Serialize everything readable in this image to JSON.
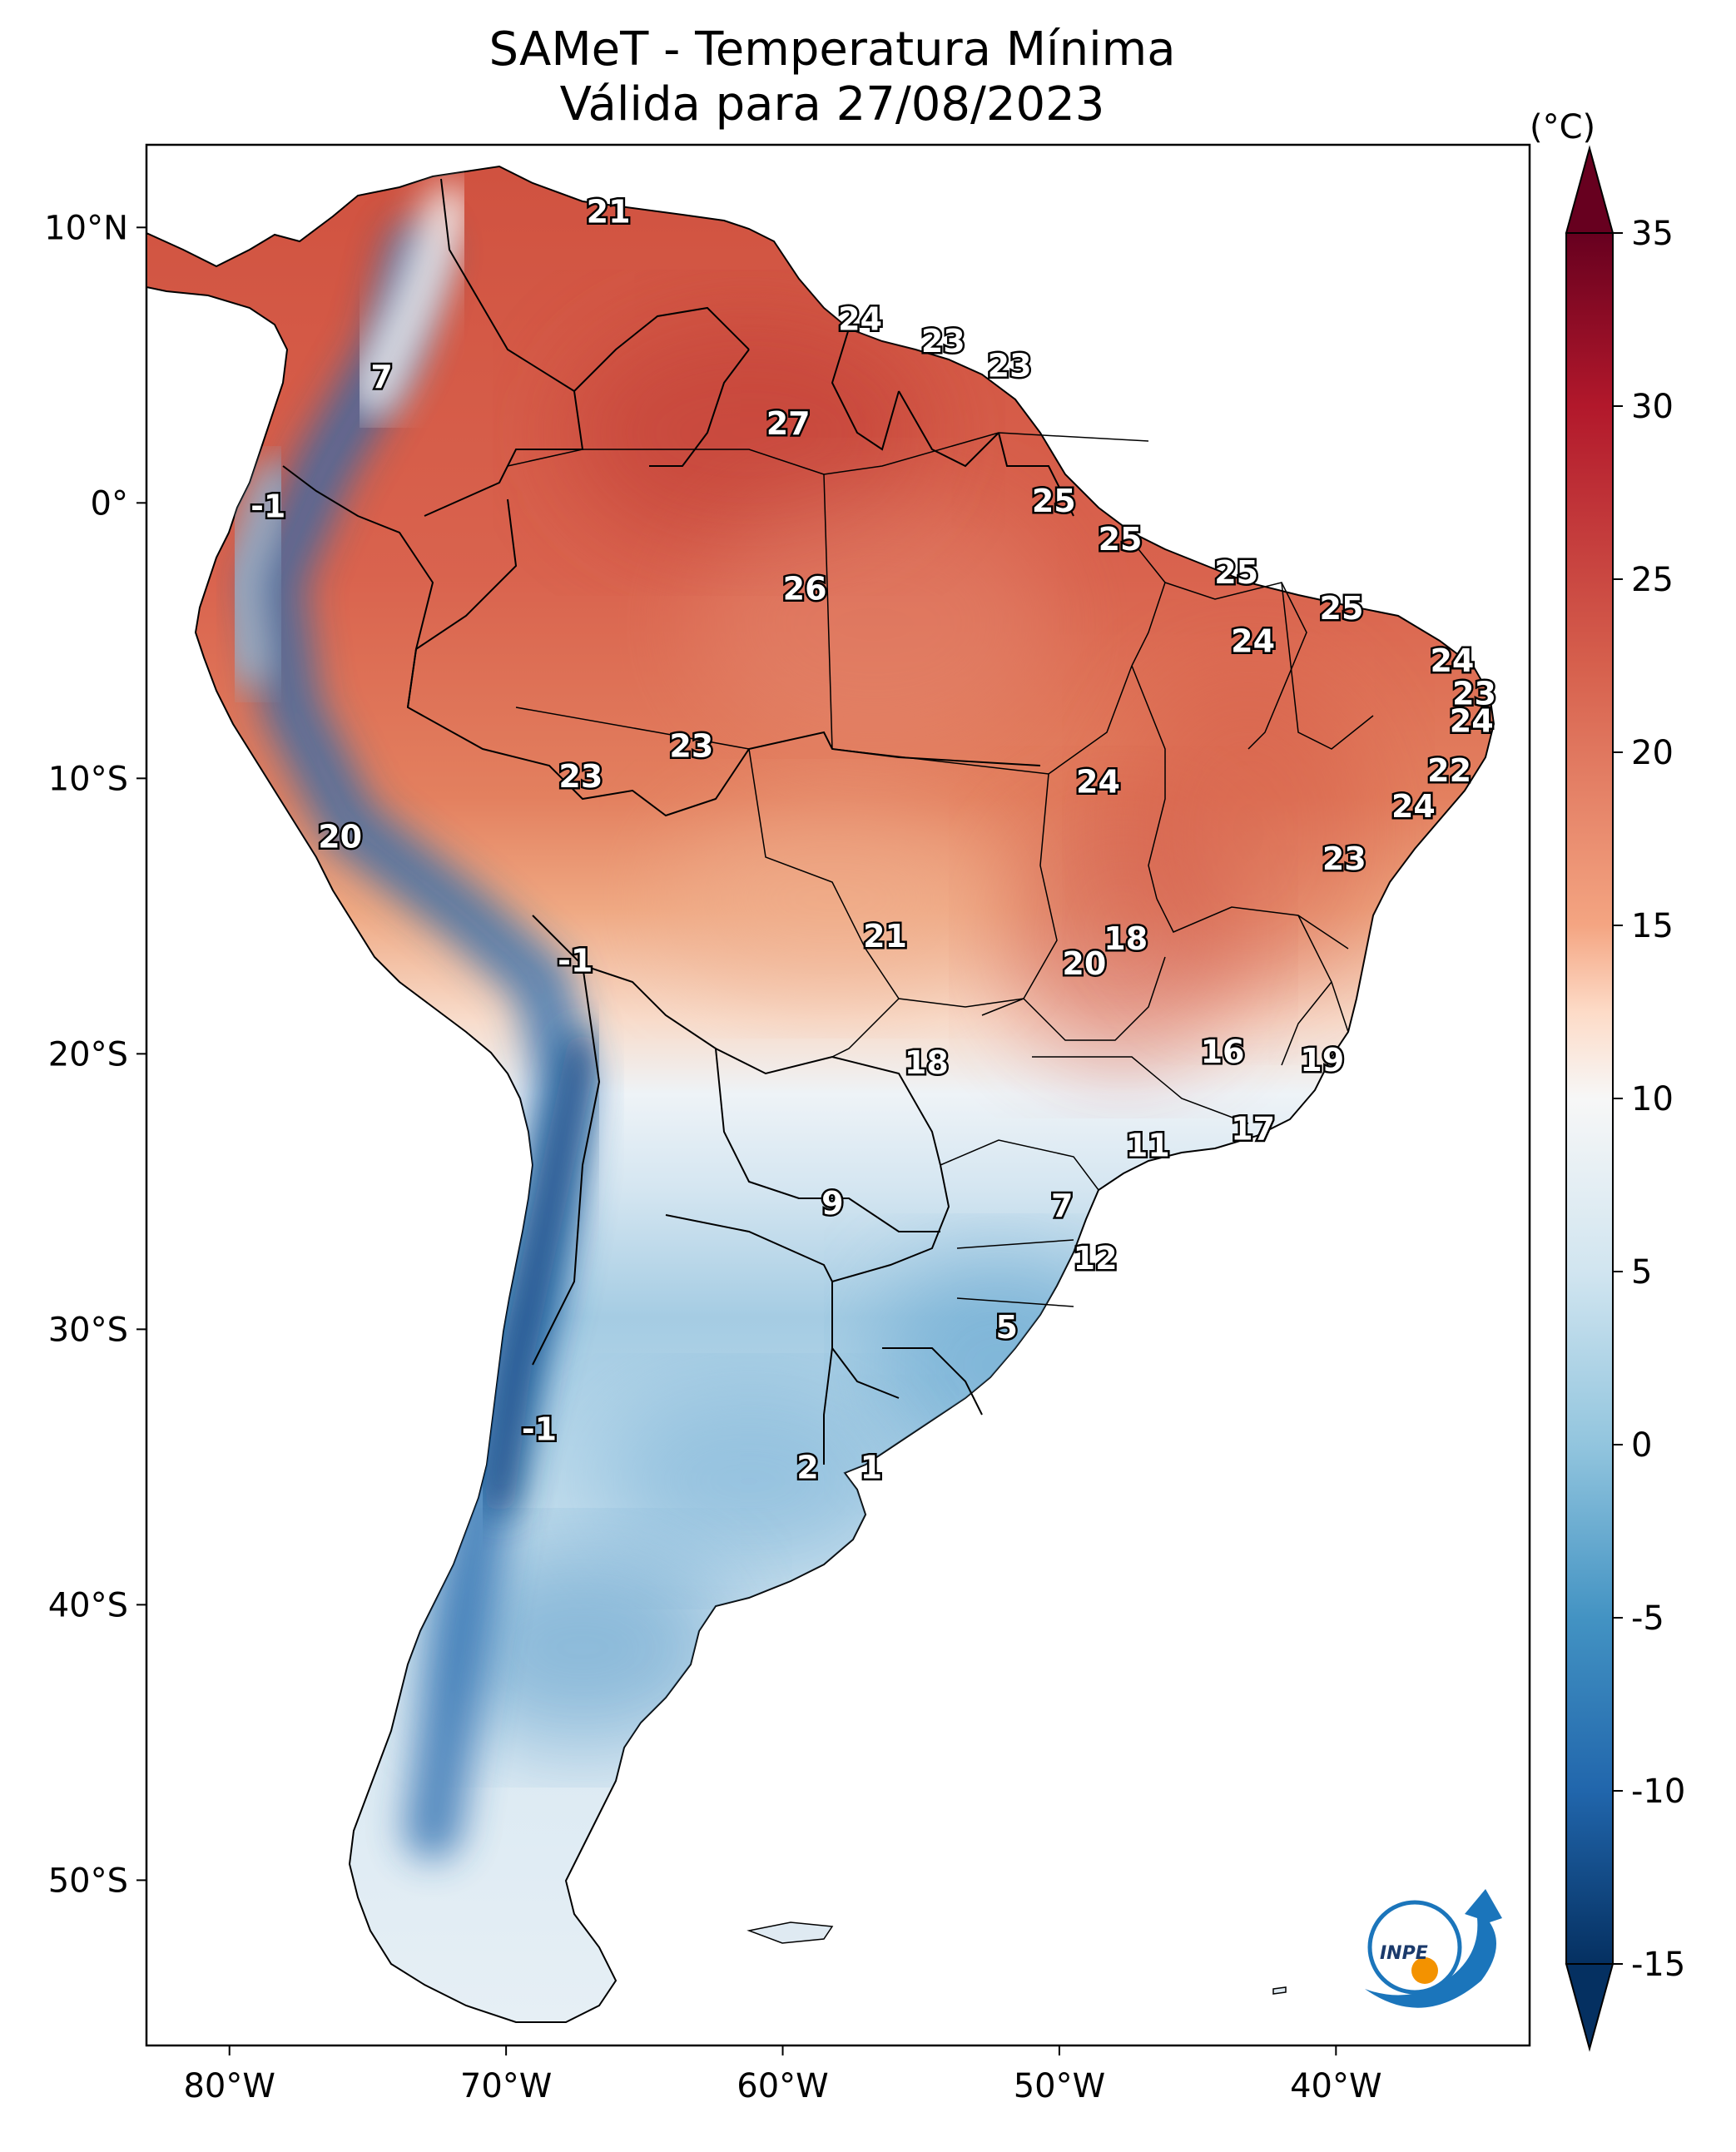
{
  "title": {
    "line1": "SAMeT - Temperatura Mínima",
    "line2": "Válida para 27/08/2023"
  },
  "colorbar": {
    "unit": "(°C)",
    "min": -15,
    "max": 35,
    "ticks": [
      "35",
      "30",
      "25",
      "20",
      "15",
      "10",
      "5",
      "0",
      "-5",
      "-10",
      "-15"
    ],
    "tick_values": [
      35,
      30,
      25,
      20,
      15,
      10,
      5,
      0,
      -5,
      -10,
      -15
    ],
    "colors_top_to_bottom": [
      "#67001f",
      "#b2182b",
      "#d6604d",
      "#f4a582",
      "#fddbc7",
      "#f7f7f7",
      "#d1e5f0",
      "#92c5de",
      "#4393c3",
      "#2166ac",
      "#053061"
    ]
  },
  "axes": {
    "lat_ticks": [
      {
        "label": "10°N",
        "value": 10
      },
      {
        "label": "0°",
        "value": 0
      },
      {
        "label": "10°S",
        "value": -10
      },
      {
        "label": "20°S",
        "value": -20
      },
      {
        "label": "30°S",
        "value": -30
      },
      {
        "label": "40°S",
        "value": -40
      },
      {
        "label": "50°S",
        "value": -50
      }
    ],
    "lon_ticks": [
      {
        "label": "80°W",
        "value": -80
      },
      {
        "label": "70°W",
        "value": -70
      },
      {
        "label": "60°W",
        "value": -60
      },
      {
        "label": "50°W",
        "value": -50
      },
      {
        "label": "40°W",
        "value": -40
      }
    ],
    "lat_range": [
      -56,
      13
    ],
    "lon_range": [
      -83,
      -33
    ]
  },
  "logo": {
    "text": "INPE"
  },
  "map_labels": [
    {
      "text": "21",
      "lon": -66.3,
      "lat": 10.5
    },
    {
      "text": "7",
      "lon": -74.5,
      "lat": 4.5
    },
    {
      "text": "24",
      "lon": -57.2,
      "lat": 6.6
    },
    {
      "text": "23",
      "lon": -54.2,
      "lat": 5.8
    },
    {
      "text": "23",
      "lon": -51.8,
      "lat": 4.9
    },
    {
      "text": "27",
      "lon": -59.8,
      "lat": 2.8
    },
    {
      "text": "-1",
      "lon": -78.6,
      "lat": -0.2
    },
    {
      "text": "25",
      "lon": -50.2,
      "lat": 0.0
    },
    {
      "text": "25",
      "lon": -47.8,
      "lat": -1.4
    },
    {
      "text": "26",
      "lon": -59.2,
      "lat": -3.2
    },
    {
      "text": "25",
      "lon": -43.6,
      "lat": -2.6
    },
    {
      "text": "25",
      "lon": -39.8,
      "lat": -3.9
    },
    {
      "text": "24",
      "lon": -43.0,
      "lat": -5.1
    },
    {
      "text": "24",
      "lon": -35.8,
      "lat": -5.8
    },
    {
      "text": "23",
      "lon": -35.0,
      "lat": -7.0
    },
    {
      "text": "24",
      "lon": -35.1,
      "lat": -8.0
    },
    {
      "text": "23",
      "lon": -63.3,
      "lat": -8.9
    },
    {
      "text": "23",
      "lon": -67.3,
      "lat": -10.0
    },
    {
      "text": "24",
      "lon": -48.6,
      "lat": -10.2
    },
    {
      "text": "22",
      "lon": -35.9,
      "lat": -9.8
    },
    {
      "text": "24",
      "lon": -37.2,
      "lat": -11.1
    },
    {
      "text": "20",
      "lon": -76.0,
      "lat": -12.2
    },
    {
      "text": "23",
      "lon": -39.7,
      "lat": -13.0
    },
    {
      "text": "21",
      "lon": -56.3,
      "lat": -15.8
    },
    {
      "text": "18",
      "lon": -47.6,
      "lat": -15.9
    },
    {
      "text": "-1",
      "lon": -67.5,
      "lat": -16.7
    },
    {
      "text": "20",
      "lon": -49.1,
      "lat": -16.8
    },
    {
      "text": "16",
      "lon": -44.1,
      "lat": -20.0
    },
    {
      "text": "18",
      "lon": -54.8,
      "lat": -20.4
    },
    {
      "text": "19",
      "lon": -40.5,
      "lat": -20.3
    },
    {
      "text": "17",
      "lon": -43.0,
      "lat": -22.8
    },
    {
      "text": "11",
      "lon": -46.8,
      "lat": -23.4
    },
    {
      "text": "9",
      "lon": -58.2,
      "lat": -25.5
    },
    {
      "text": "7",
      "lon": -49.9,
      "lat": -25.6
    },
    {
      "text": "12",
      "lon": -48.7,
      "lat": -27.5
    },
    {
      "text": "5",
      "lon": -51.9,
      "lat": -30.0
    },
    {
      "text": "-1",
      "lon": -68.8,
      "lat": -33.7
    },
    {
      "text": "2",
      "lon": -59.1,
      "lat": -35.1
    },
    {
      "text": "1",
      "lon": -56.8,
      "lat": -35.1
    }
  ]
}
